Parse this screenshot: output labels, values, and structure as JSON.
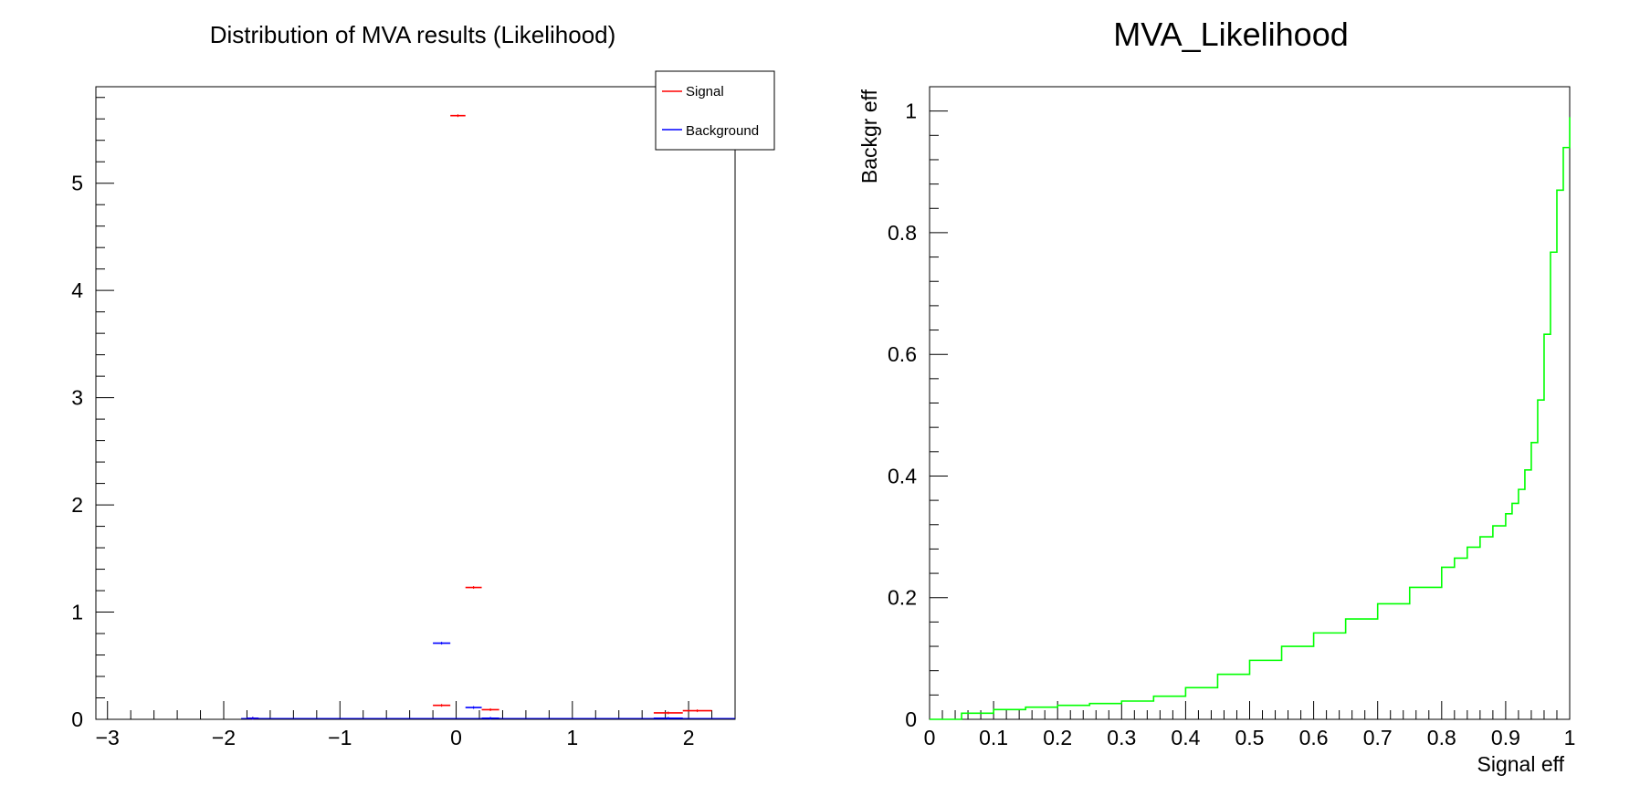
{
  "chart_data": [
    {
      "type": "histogram",
      "title": "Distribution of MVA results (Likelihood)",
      "xlabel": "",
      "ylabel": "",
      "xlim": [
        -3.1,
        2.4
      ],
      "ylim": [
        0,
        5.9
      ],
      "x_ticks": [
        -3,
        -2,
        -1,
        0,
        1,
        2
      ],
      "x_tick_labels": [
        "−3",
        "−2",
        "−1",
        "0",
        "1",
        "2"
      ],
      "y_ticks": [
        0,
        1,
        2,
        3,
        4,
        5
      ],
      "y_tick_labels": [
        "0",
        "1",
        "2",
        "3",
        "4",
        "5"
      ],
      "legend": {
        "placement": "top-right",
        "entries": [
          "Signal",
          "Background"
        ]
      },
      "series": [
        {
          "name": "Signal",
          "color": "#ff0000",
          "bins": [
            {
              "x0": -1.8,
              "x1": -1.7,
              "y": 0.01
            },
            {
              "x0": -0.2,
              "x1": -0.05,
              "y": 0.13
            },
            {
              "x0": -0.05,
              "x1": 0.08,
              "y": 5.63
            },
            {
              "x0": 0.08,
              "x1": 0.22,
              "y": 1.23
            },
            {
              "x0": 0.22,
              "x1": 0.37,
              "y": 0.09
            },
            {
              "x0": 1.7,
              "x1": 1.95,
              "y": 0.06
            },
            {
              "x0": 1.95,
              "x1": 2.2,
              "y": 0.08
            }
          ]
        },
        {
          "name": "Background",
          "color": "#0000ff",
          "bins": [
            {
              "x0": -1.8,
              "x1": -1.7,
              "y": 0.01
            },
            {
              "x0": -0.2,
              "x1": -0.05,
              "y": 0.71
            },
            {
              "x0": 0.08,
              "x1": 0.22,
              "y": 0.11
            },
            {
              "x0": 0.22,
              "x1": 0.37,
              "y": 0.01
            },
            {
              "x0": 1.7,
              "x1": 1.95,
              "y": 0.01
            }
          ]
        }
      ]
    },
    {
      "type": "line",
      "title": "MVA_Likelihood",
      "xlabel": "Signal eff",
      "ylabel": "Backgr eff",
      "xlim": [
        0,
        1
      ],
      "ylim": [
        0,
        1.04
      ],
      "x_ticks": [
        0,
        0.1,
        0.2,
        0.3,
        0.4,
        0.5,
        0.6,
        0.7,
        0.8,
        0.9,
        1
      ],
      "x_tick_labels": [
        "0",
        "0.1",
        "0.2",
        "0.3",
        "0.4",
        "0.5",
        "0.6",
        "0.7",
        "0.8",
        "0.9",
        "1"
      ],
      "y_ticks": [
        0,
        0.2,
        0.4,
        0.6,
        0.8,
        1
      ],
      "y_tick_labels": [
        "0",
        "0.2",
        "0.4",
        "0.6",
        "0.8",
        "1"
      ],
      "series": [
        {
          "color": "#00ff00",
          "step": true,
          "x": [
            0,
            0.05,
            0.1,
            0.15,
            0.2,
            0.25,
            0.3,
            0.35,
            0.4,
            0.45,
            0.5,
            0.55,
            0.6,
            0.65,
            0.7,
            0.75,
            0.8,
            0.82,
            0.84,
            0.86,
            0.88,
            0.9,
            0.91,
            0.92,
            0.93,
            0.94,
            0.95,
            0.96,
            0.97,
            0.98,
            0.99,
            1.0
          ],
          "y": [
            0.0,
            0.01,
            0.016,
            0.02,
            0.023,
            0.026,
            0.03,
            0.038,
            0.052,
            0.074,
            0.097,
            0.12,
            0.142,
            0.165,
            0.19,
            0.217,
            0.25,
            0.265,
            0.283,
            0.3,
            0.318,
            0.338,
            0.355,
            0.378,
            0.41,
            0.455,
            0.525,
            0.633,
            0.768,
            0.87,
            0.94,
            0.99
          ]
        }
      ]
    }
  ]
}
